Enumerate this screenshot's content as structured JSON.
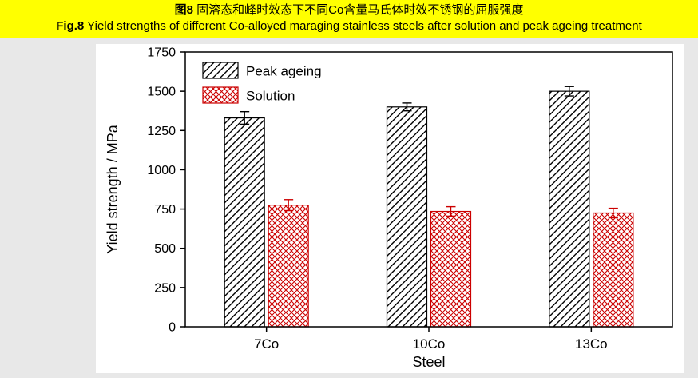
{
  "header": {
    "title_zh_bold": "图8",
    "title_zh_rest": " 固溶态和峰时效态下不同Co含量马氏体时效不锈钢的屈服强度",
    "title_en_bold": "Fig.8",
    "title_en_rest": " Yield strengths of different Co-alloyed maraging stainless steels after solution and peak ageing treatment",
    "background_color": "#ffff00"
  },
  "chart_data": {
    "type": "bar",
    "categories": [
      "7Co",
      "10Co",
      "13Co"
    ],
    "series": [
      {
        "name": "Peak ageing",
        "values": [
          1330,
          1400,
          1500
        ],
        "errors": [
          40,
          25,
          30
        ],
        "pattern": "diagonal",
        "color": "#000000"
      },
      {
        "name": "Solution",
        "values": [
          775,
          735,
          725
        ],
        "errors": [
          35,
          30,
          30
        ],
        "pattern": "crosshatch",
        "color": "#cc0000"
      }
    ],
    "title": "",
    "xlabel": "Steel",
    "ylabel": "Yield strength / MPa",
    "ylim": [
      0,
      1750
    ],
    "ytick_step": 250,
    "yticks": [
      0,
      250,
      500,
      750,
      1000,
      1250,
      1500,
      1750
    ],
    "grid": false,
    "legend_position": "top-left",
    "error_bars": true
  }
}
